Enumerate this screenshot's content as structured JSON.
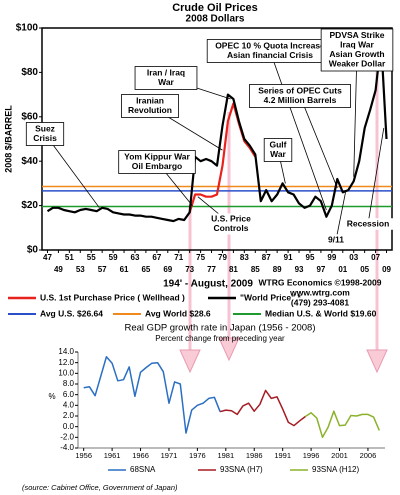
{
  "chart_data": [
    {
      "type": "line",
      "title": "Crude Oil Prices",
      "subtitle": "2008 Dollars",
      "y_label": "2008 $/BARREL",
      "xlim": [
        1946,
        2010
      ],
      "ylim": [
        0,
        100
      ],
      "yticks": [
        {
          "value": 0,
          "label": "$0"
        },
        {
          "value": 20,
          "label": "$20"
        },
        {
          "value": 40,
          "label": "$40"
        },
        {
          "value": 60,
          "label": "$60"
        },
        {
          "value": 80,
          "label": "$80"
        },
        {
          "value": 100,
          "label": "$100"
        }
      ],
      "xticks": [
        {
          "value": 1947,
          "label": "47"
        },
        {
          "value": 1949,
          "label": "49"
        },
        {
          "value": 1951,
          "label": "51"
        },
        {
          "value": 1953,
          "label": "53"
        },
        {
          "value": 1955,
          "label": "55"
        },
        {
          "value": 1957,
          "label": "57"
        },
        {
          "value": 1959,
          "label": "59"
        },
        {
          "value": 1961,
          "label": "61"
        },
        {
          "value": 1963,
          "label": "63"
        },
        {
          "value": 1965,
          "label": "65"
        },
        {
          "value": 1967,
          "label": "67"
        },
        {
          "value": 1969,
          "label": "69"
        },
        {
          "value": 1971,
          "label": "71"
        },
        {
          "value": 1973,
          "label": "73"
        },
        {
          "value": 1975,
          "label": "75"
        },
        {
          "value": 1977,
          "label": "77"
        },
        {
          "value": 1979,
          "label": "79"
        },
        {
          "value": 1981,
          "label": "81"
        },
        {
          "value": 1983,
          "label": "83"
        },
        {
          "value": 1985,
          "label": "85"
        },
        {
          "value": 1987,
          "label": "87"
        },
        {
          "value": 1989,
          "label": "89"
        },
        {
          "value": 1991,
          "label": "91"
        },
        {
          "value": 1993,
          "label": "93"
        },
        {
          "value": 1995,
          "label": "95"
        },
        {
          "value": 1997,
          "label": "97"
        },
        {
          "value": 1999,
          "label": "99"
        },
        {
          "value": 2001,
          "label": "01"
        },
        {
          "value": 2003,
          "label": "03"
        },
        {
          "value": 2005,
          "label": "05"
        },
        {
          "value": 2007,
          "label": "07"
        },
        {
          "value": 2009,
          "label": "09"
        }
      ],
      "series": [
        {
          "name": "U.S. 1st Purchase Price ( Wellhead )",
          "color": "#e8231e",
          "x": [
            1973,
            1974,
            1975,
            1976,
            1977,
            1978,
            1979,
            1980,
            1981,
            1982,
            1983,
            1984,
            1985
          ],
          "values": [
            17,
            25,
            25,
            24,
            24,
            25,
            38,
            58,
            66,
            57,
            49,
            46,
            42
          ]
        },
        {
          "name": "\"World Price\" *",
          "color": "#000000",
          "x": [
            1947,
            1948,
            1949,
            1950,
            1951,
            1952,
            1953,
            1954,
            1955,
            1956,
            1957,
            1958,
            1959,
            1960,
            1961,
            1962,
            1963,
            1964,
            1965,
            1966,
            1967,
            1968,
            1969,
            1970,
            1971,
            1972,
            1973,
            1974,
            1975,
            1976,
            1977,
            1978,
            1979,
            1980,
            1981,
            1982,
            1983,
            1984,
            1985,
            1986,
            1987,
            1988,
            1989,
            1990,
            1991,
            1992,
            1993,
            1994,
            1995,
            1996,
            1997,
            1998,
            1999,
            2000,
            2001,
            2002,
            2003,
            2004,
            2005,
            2006,
            2007,
            2008,
            2009
          ],
          "values": [
            17.5,
            19,
            19,
            18,
            17.5,
            17,
            18,
            18.5,
            18,
            17.5,
            19,
            18.5,
            17,
            16.5,
            16,
            16,
            15.5,
            15.5,
            15,
            15,
            14.5,
            14,
            13.5,
            13,
            14,
            13.5,
            17,
            42,
            40,
            41,
            40,
            38,
            56,
            70,
            68,
            58,
            50,
            47,
            43,
            22,
            27,
            22,
            25,
            30,
            26,
            25,
            21,
            19,
            20,
            24,
            22,
            15,
            20,
            32,
            26,
            27,
            31,
            40,
            55,
            63,
            72,
            94,
            50
          ]
        }
      ],
      "reference_lines": [
        {
          "name": "Avg U.S. $26.64",
          "value": 26.64,
          "color": "#2b4fc9"
        },
        {
          "name": "Avg World $28.6",
          "value": 28.6,
          "color": "#f08a1c"
        },
        {
          "name": "Median U.S. & World $19.60",
          "value": 19.6,
          "color": "#1f9a2f"
        }
      ],
      "annotations": [
        {
          "lines": [
            "Suez",
            "Crisis"
          ]
        },
        {
          "lines": [
            "Yom Kippur War",
            "Oil Embargo"
          ]
        },
        {
          "lines": [
            "Iranian",
            "Revolution"
          ]
        },
        {
          "lines": [
            "Iran / Iraq",
            "War"
          ]
        },
        {
          "lines": [
            "OPEC 10 % Quota Increase",
            "Asian financial Crisis"
          ]
        },
        {
          "lines": [
            "PDVSA Strike",
            "Iraq War",
            "Asian Growth",
            "Weaker Dollar"
          ]
        },
        {
          "lines": [
            "Series of OPEC Cuts",
            "4.2 Million Barrels"
          ]
        },
        {
          "lines": [
            "Gulf",
            "War"
          ]
        },
        {
          "lines": [
            "U.S. Price",
            "Controls"
          ]
        },
        {
          "lines": [
            "9/11"
          ]
        },
        {
          "lines": [
            "Recession"
          ]
        }
      ],
      "period": "194' - August, 2009",
      "credits": [
        "WTRG Economics  ©1998-2009",
        "www.wtrg.com",
        "(479) 293-4081"
      ]
    },
    {
      "type": "line",
      "title": "Real GDP growth rate in Japan (1956 - 2008)",
      "subtitle": "Percent change from preceding year",
      "y_label": "%",
      "xlim": [
        1955,
        2009
      ],
      "ylim": [
        -4,
        14
      ],
      "yticks": [
        {
          "value": -4,
          "label": "-4.0"
        },
        {
          "value": -2,
          "label": "-2.0"
        },
        {
          "value": 0,
          "label": "0.0"
        },
        {
          "value": 2,
          "label": "2.0"
        },
        {
          "value": 4,
          "label": "4.0"
        },
        {
          "value": 6,
          "label": "6.0"
        },
        {
          "value": 8,
          "label": "8.0"
        },
        {
          "value": 10,
          "label": "10.0"
        },
        {
          "value": 12,
          "label": "12.0"
        },
        {
          "value": 14,
          "label": "14.0"
        }
      ],
      "xticks": [
        1956,
        1961,
        1966,
        1971,
        1976,
        1981,
        1986,
        1991,
        1996,
        2001,
        2006
      ],
      "series": [
        {
          "name": "68SNA",
          "color": "#2b6fc4",
          "x": [
            1956,
            1957,
            1958,
            1959,
            1960,
            1961,
            1962,
            1963,
            1964,
            1965,
            1966,
            1967,
            1968,
            1969,
            1970,
            1971,
            1972,
            1973,
            1974,
            1975,
            1976,
            1977,
            1978,
            1979,
            1980
          ],
          "values": [
            7.3,
            7.5,
            5.8,
            9.4,
            13.1,
            11.9,
            8.6,
            8.8,
            11.2,
            5.7,
            10.2,
            11.1,
            11.9,
            12.0,
            10.3,
            4.4,
            8.4,
            8.0,
            -1.2,
            3.1,
            4.0,
            4.4,
            5.3,
            5.5,
            2.8
          ]
        },
        {
          "name": "93SNA (H7)",
          "color": "#a51c24",
          "x": [
            1980,
            1981,
            1982,
            1983,
            1984,
            1985,
            1986,
            1987,
            1988,
            1989,
            1990,
            1991,
            1992,
            1993,
            1994,
            1995
          ],
          "values": [
            2.8,
            3.1,
            3.0,
            2.3,
            3.9,
            4.4,
            2.9,
            4.2,
            6.8,
            5.3,
            5.6,
            3.3,
            0.8,
            0.2,
            1.1,
            1.9
          ]
        },
        {
          "name": "93SNA (H12)",
          "color": "#8cb22c",
          "x": [
            1995,
            1996,
            1997,
            1998,
            1999,
            2000,
            2001,
            2002,
            2003,
            2004,
            2005,
            2006,
            2007,
            2008
          ],
          "values": [
            1.9,
            2.6,
            1.6,
            -2.0,
            -0.1,
            2.9,
            0.2,
            0.3,
            2.1,
            2.0,
            2.3,
            2.3,
            1.8,
            -0.7
          ]
        }
      ],
      "source": "(source: Cabinet Office, Government of Japan)"
    }
  ]
}
